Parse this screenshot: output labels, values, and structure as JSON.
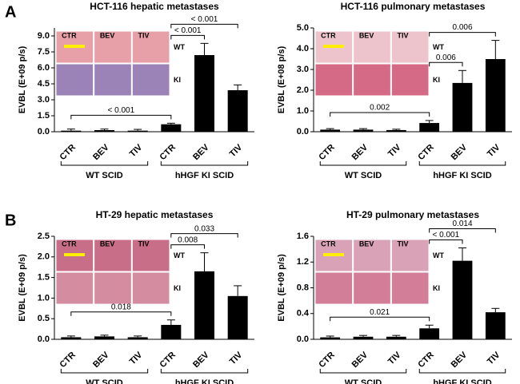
{
  "chart_data": [
    {
      "type": "bar",
      "panel": "A",
      "title": "HCT-116 hepatic metastases",
      "ylabel": "EVBL (E+09 p/s)",
      "categories": [
        "CTR",
        "BEV",
        "TIV",
        "CTR",
        "BEV",
        "TIV"
      ],
      "values": [
        0.1,
        0.15,
        0.1,
        0.7,
        7.2,
        3.9
      ],
      "errors": [
        0.15,
        0.1,
        0.12,
        0.1,
        1.1,
        0.5
      ],
      "color": "#000000",
      "ylim": [
        0,
        9.75
      ],
      "yticks": [
        {
          "value": 0,
          "label": "0.0"
        },
        1.5,
        {
          "value": 3,
          "label": "3.0"
        },
        4.5,
        {
          "value": 6,
          "label": "6.0"
        },
        7.5,
        {
          "value": 9,
          "label": "9.0"
        }
      ],
      "annotations": [
        {
          "text": "< 0.001",
          "from": 0,
          "to": 3
        },
        {
          "text": "< 0.001",
          "from": 3,
          "to": 4
        },
        {
          "text": "< 0.001",
          "from": 3,
          "to": 5
        }
      ],
      "groups": [
        {
          "name": "WT SCID",
          "from": 0,
          "to": 2
        },
        {
          "name": "hHGF KI SCID",
          "from": 3,
          "to": 5
        }
      ],
      "inset": {
        "columns": [
          "CTR",
          "BEV",
          "TIV"
        ],
        "rows": [
          "WT",
          "KI"
        ]
      }
    },
    {
      "type": "bar",
      "title": "HCT-116 pulmonary metastases",
      "ylabel": "EVBL (E+08 p/s)",
      "categories": [
        "CTR",
        "BEV",
        "TIV",
        "CTR",
        "BEV",
        "TIV"
      ],
      "values": [
        0.1,
        0.1,
        0.08,
        0.42,
        2.35,
        3.5
      ],
      "errors": [
        0.05,
        0.05,
        0.04,
        0.12,
        0.6,
        0.9
      ],
      "color": "#000000",
      "ylim": [
        0,
        5
      ],
      "yticks": [
        {
          "value": 0,
          "label": "0.0"
        },
        {
          "value": 1,
          "label": "1.0"
        },
        {
          "value": 2,
          "label": "2.0"
        },
        {
          "value": 3,
          "label": "3.0"
        },
        {
          "value": 4,
          "label": "4.0"
        },
        {
          "value": 5,
          "label": "5.0"
        }
      ],
      "annotations": [
        {
          "text": "0.002",
          "from": 0,
          "to": 3
        },
        {
          "text": "0.006",
          "from": 3,
          "to": 4
        },
        {
          "text": "0.006",
          "from": 3,
          "to": 5
        }
      ],
      "groups": [
        {
          "name": "WT SCID",
          "from": 0,
          "to": 2
        },
        {
          "name": "hHGF KI SCID",
          "from": 3,
          "to": 5
        }
      ],
      "inset": {
        "columns": [
          "CTR",
          "BEV",
          "TIV"
        ],
        "rows": [
          "WT",
          "KI"
        ]
      }
    },
    {
      "type": "bar",
      "panel": "B",
      "title": "HT-29 hepatic metastases",
      "ylabel": "EVBL (E+09 p/s)",
      "categories": [
        "CTR",
        "BEV",
        "TIV",
        "CTR",
        "BEV",
        "TIV"
      ],
      "values": [
        0.05,
        0.07,
        0.05,
        0.35,
        1.65,
        1.05
      ],
      "errors": [
        0.03,
        0.03,
        0.03,
        0.12,
        0.45,
        0.25
      ],
      "color": "#000000",
      "ylim": [
        0,
        2.5
      ],
      "yticks": [
        {
          "value": 0,
          "label": "0.0"
        },
        0.5,
        {
          "value": 1,
          "label": "1.0"
        },
        1.5,
        {
          "value": 2,
          "label": "2.0"
        },
        2.5
      ],
      "annotations": [
        {
          "text": "0.018",
          "from": 0,
          "to": 3
        },
        {
          "text": "0.008",
          "from": 3,
          "to": 4
        },
        {
          "text": "0.033",
          "from": 3,
          "to": 5
        }
      ],
      "groups": [
        {
          "name": "WT SCID",
          "from": 0,
          "to": 2
        },
        {
          "name": "hHGF KI SCID",
          "from": 3,
          "to": 5
        }
      ],
      "inset": {
        "columns": [
          "CTR",
          "BEV",
          "TIV"
        ],
        "rows": [
          "WT",
          "KI"
        ]
      }
    },
    {
      "type": "bar",
      "title": "HT-29 pulmonary metastases",
      "ylabel": "EVBL (E+09 p/s)",
      "categories": [
        "CTR",
        "BEV",
        "TIV",
        "CTR",
        "BEV",
        "TIV"
      ],
      "values": [
        0.03,
        0.04,
        0.04,
        0.17,
        1.22,
        0.42
      ],
      "errors": [
        0.02,
        0.02,
        0.02,
        0.05,
        0.2,
        0.06
      ],
      "color": "#000000",
      "ylim": [
        0,
        1.6
      ],
      "yticks": [
        {
          "value": 0,
          "label": "0.0"
        },
        0.4,
        0.8,
        1.2,
        1.6
      ],
      "annotations": [
        {
          "text": "0.021",
          "from": 0,
          "to": 3
        },
        {
          "text": "< 0.001",
          "from": 3,
          "to": 4
        },
        {
          "text": "0.014",
          "from": 3,
          "to": 5
        }
      ],
      "groups": [
        {
          "name": "WT SCID",
          "from": 0,
          "to": 2
        },
        {
          "name": "hHGF KI SCID",
          "from": 3,
          "to": 5
        }
      ],
      "inset": {
        "columns": [
          "CTR",
          "BEV",
          "TIV"
        ],
        "rows": [
          "WT",
          "KI"
        ]
      }
    }
  ]
}
